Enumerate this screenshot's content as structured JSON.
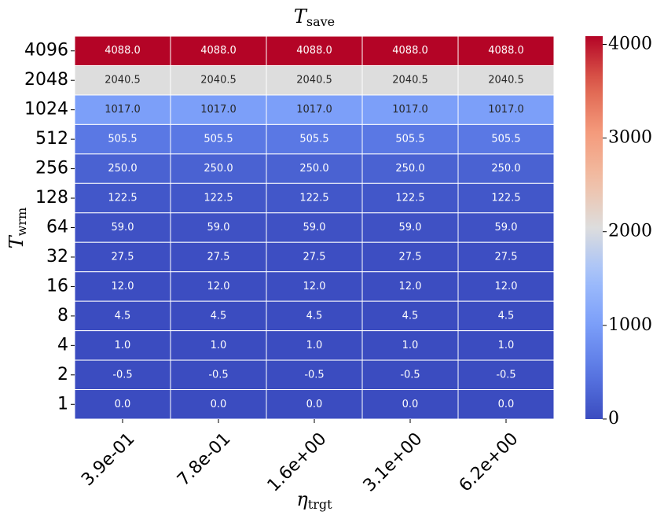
{
  "chart_data": {
    "type": "heatmap",
    "title": {
      "base": "T",
      "sub": "save"
    },
    "xlabel": {
      "base": "η",
      "sub": "trgt"
    },
    "ylabel": {
      "base": "T",
      "sub": "wrm"
    },
    "x_categories": [
      "3.9e-01",
      "7.8e-01",
      "1.6e+00",
      "3.1e+00",
      "6.2e+00"
    ],
    "y_categories": [
      "4096",
      "2048",
      "1024",
      "512",
      "256",
      "128",
      "64",
      "32",
      "16",
      "8",
      "4",
      "2",
      "1"
    ],
    "z": [
      [
        4088.0,
        4088.0,
        4088.0,
        4088.0,
        4088.0
      ],
      [
        2040.5,
        2040.5,
        2040.5,
        2040.5,
        2040.5
      ],
      [
        1017.0,
        1017.0,
        1017.0,
        1017.0,
        1017.0
      ],
      [
        505.5,
        505.5,
        505.5,
        505.5,
        505.5
      ],
      [
        250.0,
        250.0,
        250.0,
        250.0,
        250.0
      ],
      [
        122.5,
        122.5,
        122.5,
        122.5,
        122.5
      ],
      [
        59.0,
        59.0,
        59.0,
        59.0,
        59.0
      ],
      [
        27.5,
        27.5,
        27.5,
        27.5,
        27.5
      ],
      [
        12.0,
        12.0,
        12.0,
        12.0,
        12.0
      ],
      [
        4.5,
        4.5,
        4.5,
        4.5,
        4.5
      ],
      [
        1.0,
        1.0,
        1.0,
        1.0,
        1.0
      ],
      [
        -0.5,
        -0.5,
        -0.5,
        -0.5,
        -0.5
      ],
      [
        0.0,
        0.0,
        0.0,
        0.0,
        0.0
      ]
    ],
    "value_labels": [
      [
        "4088.0",
        "4088.0",
        "4088.0",
        "4088.0",
        "4088.0"
      ],
      [
        "2040.5",
        "2040.5",
        "2040.5",
        "2040.5",
        "2040.5"
      ],
      [
        "1017.0",
        "1017.0",
        "1017.0",
        "1017.0",
        "1017.0"
      ],
      [
        "505.5",
        "505.5",
        "505.5",
        "505.5",
        "505.5"
      ],
      [
        "250.0",
        "250.0",
        "250.0",
        "250.0",
        "250.0"
      ],
      [
        "122.5",
        "122.5",
        "122.5",
        "122.5",
        "122.5"
      ],
      [
        "59.0",
        "59.0",
        "59.0",
        "59.0",
        "59.0"
      ],
      [
        "27.5",
        "27.5",
        "27.5",
        "27.5",
        "27.5"
      ],
      [
        "12.0",
        "12.0",
        "12.0",
        "12.0",
        "12.0"
      ],
      [
        "4.5",
        "4.5",
        "4.5",
        "4.5",
        "4.5"
      ],
      [
        "1.0",
        "1.0",
        "1.0",
        "1.0",
        "1.0"
      ],
      [
        "-0.5",
        "-0.5",
        "-0.5",
        "-0.5",
        "-0.5"
      ],
      [
        "0.0",
        "0.0",
        "0.0",
        "0.0",
        "0.0"
      ]
    ],
    "colormap": "coolwarm",
    "zlim": [
      -0.5,
      4088.0
    ],
    "colorbar_ticks": [
      0,
      1000,
      2000,
      3000,
      4000
    ]
  }
}
